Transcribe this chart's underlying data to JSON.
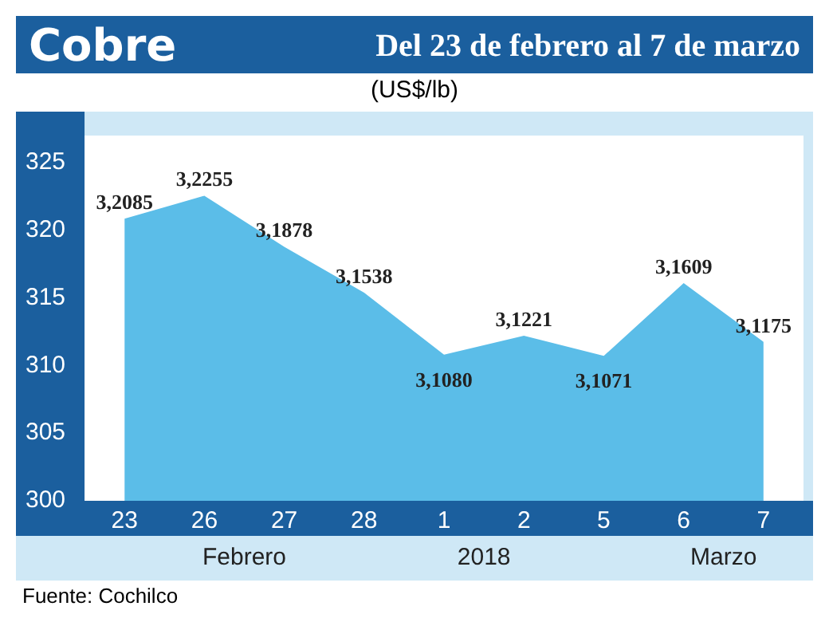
{
  "chart_data": {
    "type": "area",
    "title": "Cobre",
    "subtitle": "Del 23 de febrero al 7 de marzo",
    "ylabel": "(US$/lb)",
    "categories": [
      "23",
      "26",
      "27",
      "28",
      "1",
      "2",
      "5",
      "6",
      "7"
    ],
    "series": [
      {
        "color": "#5bbde8",
        "values": [
          320.85,
          322.55,
          318.78,
          315.38,
          310.8,
          312.21,
          310.71,
          316.09,
          311.75
        ],
        "value_labels": [
          "3,2085",
          "3,2255",
          "3,1878",
          "3,1538",
          "3,1080",
          "3,1221",
          "3,1071",
          "3,1609",
          "3,1175"
        ]
      }
    ],
    "ylim": [
      300,
      327
    ],
    "yticks": [
      300,
      305,
      310,
      315,
      320,
      325
    ],
    "grid": false,
    "legend": false,
    "marker": "none",
    "annotations": [
      "Febrero",
      "2018",
      "Marzo",
      "Fuente: Cochilco"
    ]
  }
}
